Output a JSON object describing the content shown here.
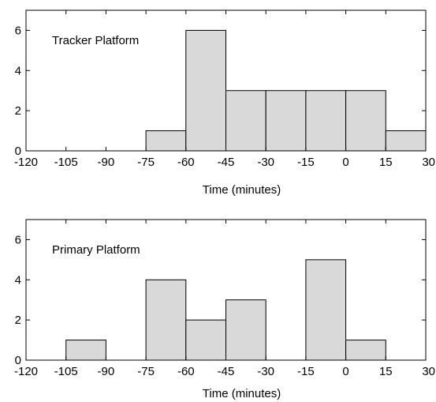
{
  "chart_data": [
    {
      "type": "bar",
      "title": "Tracker Platform",
      "xlabel": "Time (minutes)",
      "ylabel": "",
      "xlim": [
        -120,
        30
      ],
      "ylim": [
        0,
        7
      ],
      "x_ticks": [
        -120,
        -105,
        -90,
        -75,
        -60,
        -45,
        -30,
        -15,
        0,
        15,
        30
      ],
      "y_ticks": [
        0,
        2,
        4,
        6
      ],
      "bin_edges": [
        -120,
        -105,
        -90,
        -75,
        -60,
        -45,
        -30,
        -15,
        0,
        15,
        30
      ],
      "values": [
        0,
        0,
        0,
        1,
        6,
        3,
        3,
        3,
        3,
        1
      ],
      "grid": false,
      "bar_color": "#d9d9d9"
    },
    {
      "type": "bar",
      "title": "Primary Platform",
      "xlabel": "Time (minutes)",
      "ylabel": "",
      "xlim": [
        -120,
        30
      ],
      "ylim": [
        0,
        7
      ],
      "x_ticks": [
        -120,
        -105,
        -90,
        -75,
        -60,
        -45,
        -30,
        -15,
        0,
        15,
        30
      ],
      "y_ticks": [
        0,
        2,
        4,
        6
      ],
      "bin_edges": [
        -120,
        -105,
        -90,
        -75,
        -60,
        -45,
        -30,
        -15,
        0,
        15,
        30
      ],
      "values": [
        0,
        1,
        0,
        4,
        2,
        3,
        0,
        5,
        1,
        0
      ],
      "grid": false,
      "bar_color": "#d9d9d9"
    }
  ]
}
